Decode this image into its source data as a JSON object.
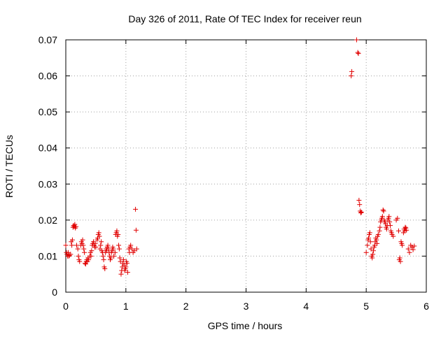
{
  "chart_data": {
    "type": "scatter",
    "title": "Day 326 of 2011, Rate Of TEC Index for receiver reun",
    "xlabel": "GPS time / hours",
    "ylabel": "ROTI / TECUs",
    "xlim": [
      0,
      6
    ],
    "ylim": [
      0,
      0.07
    ],
    "xticks": [
      0,
      1,
      2,
      3,
      4,
      5,
      6
    ],
    "xtick_labels": [
      "0",
      "1",
      "2",
      "3",
      "4",
      "5",
      "6"
    ],
    "yticks": [
      0,
      0.01,
      0.02,
      0.03,
      0.04,
      0.05,
      0.06,
      0.07
    ],
    "ytick_labels": [
      "0",
      "0.01",
      "0.02",
      "0.03",
      "0.04",
      "0.05",
      "0.06",
      "0.07"
    ],
    "grid": true,
    "marker": "+",
    "color": "#e00000",
    "series": [
      {
        "name": "ROTI",
        "points": [
          [
            0.0,
            0.013
          ],
          [
            0.01,
            0.011
          ],
          [
            0.02,
            0.0105
          ],
          [
            0.03,
            0.01
          ],
          [
            0.04,
            0.011
          ],
          [
            0.05,
            0.01
          ],
          [
            0.06,
            0.0102
          ],
          [
            0.08,
            0.0105
          ],
          [
            0.09,
            0.014
          ],
          [
            0.1,
            0.013
          ],
          [
            0.11,
            0.0145
          ],
          [
            0.12,
            0.018
          ],
          [
            0.13,
            0.0185
          ],
          [
            0.14,
            0.0182
          ],
          [
            0.15,
            0.0188
          ],
          [
            0.16,
            0.0178
          ],
          [
            0.17,
            0.0182
          ],
          [
            0.18,
            0.013
          ],
          [
            0.2,
            0.012
          ],
          [
            0.21,
            0.01
          ],
          [
            0.22,
            0.009
          ],
          [
            0.23,
            0.0085
          ],
          [
            0.25,
            0.013
          ],
          [
            0.26,
            0.014
          ],
          [
            0.27,
            0.0135
          ],
          [
            0.28,
            0.0145
          ],
          [
            0.29,
            0.013
          ],
          [
            0.3,
            0.012
          ],
          [
            0.31,
            0.011
          ],
          [
            0.32,
            0.008
          ],
          [
            0.33,
            0.0078
          ],
          [
            0.34,
            0.0085
          ],
          [
            0.35,
            0.009
          ],
          [
            0.36,
            0.0085
          ],
          [
            0.37,
            0.0095
          ],
          [
            0.38,
            0.009
          ],
          [
            0.4,
            0.01
          ],
          [
            0.41,
            0.011
          ],
          [
            0.42,
            0.01
          ],
          [
            0.43,
            0.0115
          ],
          [
            0.44,
            0.013
          ],
          [
            0.45,
            0.0135
          ],
          [
            0.46,
            0.014
          ],
          [
            0.47,
            0.013
          ],
          [
            0.48,
            0.0125
          ],
          [
            0.49,
            0.0135
          ],
          [
            0.5,
            0.0125
          ],
          [
            0.52,
            0.0145
          ],
          [
            0.53,
            0.015
          ],
          [
            0.54,
            0.016
          ],
          [
            0.55,
            0.0165
          ],
          [
            0.56,
            0.0155
          ],
          [
            0.57,
            0.012
          ],
          [
            0.58,
            0.013
          ],
          [
            0.59,
            0.014
          ],
          [
            0.6,
            0.0115
          ],
          [
            0.61,
            0.011
          ],
          [
            0.62,
            0.01
          ],
          [
            0.63,
            0.009
          ],
          [
            0.64,
            0.007
          ],
          [
            0.65,
            0.0065
          ],
          [
            0.66,
            0.011
          ],
          [
            0.67,
            0.012
          ],
          [
            0.68,
            0.0115
          ],
          [
            0.69,
            0.0125
          ],
          [
            0.7,
            0.013
          ],
          [
            0.71,
            0.012
          ],
          [
            0.72,
            0.011
          ],
          [
            0.73,
            0.01
          ],
          [
            0.74,
            0.009
          ],
          [
            0.75,
            0.0095
          ],
          [
            0.76,
            0.011
          ],
          [
            0.77,
            0.0115
          ],
          [
            0.78,
            0.0125
          ],
          [
            0.79,
            0.012
          ],
          [
            0.8,
            0.01
          ],
          [
            0.82,
            0.011
          ],
          [
            0.83,
            0.016
          ],
          [
            0.84,
            0.0165
          ],
          [
            0.85,
            0.017
          ],
          [
            0.86,
            0.0155
          ],
          [
            0.87,
            0.016
          ],
          [
            0.88,
            0.013
          ],
          [
            0.89,
            0.012
          ],
          [
            0.9,
            0.0095
          ],
          [
            0.91,
            0.0085
          ],
          [
            0.92,
            0.005
          ],
          [
            0.93,
            0.006
          ],
          [
            0.94,
            0.007
          ],
          [
            0.95,
            0.008
          ],
          [
            0.96,
            0.009
          ],
          [
            0.97,
            0.0075
          ],
          [
            0.98,
            0.006
          ],
          [
            0.99,
            0.0065
          ],
          [
            1.0,
            0.007
          ],
          [
            1.01,
            0.0085
          ],
          [
            1.02,
            0.008
          ],
          [
            1.03,
            0.0055
          ],
          [
            1.05,
            0.012
          ],
          [
            1.06,
            0.011
          ],
          [
            1.07,
            0.0125
          ],
          [
            1.08,
            0.013
          ],
          [
            1.1,
            0.012
          ],
          [
            1.12,
            0.011
          ],
          [
            1.14,
            0.0115
          ],
          [
            1.16,
            0.023
          ],
          [
            1.17,
            0.0172
          ],
          [
            1.18,
            0.012
          ]
        ]
      },
      {
        "name": "ROTI",
        "points": [
          [
            4.75,
            0.06
          ],
          [
            4.76,
            0.0612
          ],
          [
            4.84,
            0.07
          ],
          [
            4.86,
            0.0665
          ],
          [
            4.87,
            0.0662
          ],
          [
            4.88,
            0.0255
          ],
          [
            4.89,
            0.0243
          ],
          [
            4.9,
            0.0225
          ],
          [
            4.91,
            0.022
          ],
          [
            4.92,
            0.0222
          ],
          [
            5.0,
            0.011
          ],
          [
            5.02,
            0.013
          ],
          [
            5.03,
            0.0145
          ],
          [
            5.04,
            0.015
          ],
          [
            5.05,
            0.016
          ],
          [
            5.06,
            0.0165
          ],
          [
            5.07,
            0.014
          ],
          [
            5.08,
            0.012
          ],
          [
            5.09,
            0.01
          ],
          [
            5.1,
            0.0095
          ],
          [
            5.11,
            0.0105
          ],
          [
            5.12,
            0.0115
          ],
          [
            5.13,
            0.0125
          ],
          [
            5.14,
            0.013
          ],
          [
            5.15,
            0.014
          ],
          [
            5.16,
            0.015
          ],
          [
            5.17,
            0.0145
          ],
          [
            5.18,
            0.0135
          ],
          [
            5.19,
            0.0155
          ],
          [
            5.2,
            0.016
          ],
          [
            5.22,
            0.017
          ],
          [
            5.23,
            0.018
          ],
          [
            5.24,
            0.0195
          ],
          [
            5.25,
            0.02
          ],
          [
            5.26,
            0.0205
          ],
          [
            5.27,
            0.021
          ],
          [
            5.28,
            0.0228
          ],
          [
            5.29,
            0.0225
          ],
          [
            5.3,
            0.02
          ],
          [
            5.31,
            0.0195
          ],
          [
            5.32,
            0.019
          ],
          [
            5.33,
            0.018
          ],
          [
            5.34,
            0.0175
          ],
          [
            5.35,
            0.0185
          ],
          [
            5.36,
            0.02
          ],
          [
            5.37,
            0.0205
          ],
          [
            5.38,
            0.021
          ],
          [
            5.39,
            0.0195
          ],
          [
            5.4,
            0.0185
          ],
          [
            5.41,
            0.017
          ],
          [
            5.42,
            0.0165
          ],
          [
            5.43,
            0.016
          ],
          [
            5.45,
            0.0155
          ],
          [
            5.5,
            0.02
          ],
          [
            5.52,
            0.0205
          ],
          [
            5.54,
            0.017
          ],
          [
            5.55,
            0.009
          ],
          [
            5.56,
            0.0095
          ],
          [
            5.57,
            0.0085
          ],
          [
            5.58,
            0.014
          ],
          [
            5.59,
            0.0135
          ],
          [
            5.6,
            0.013
          ],
          [
            5.62,
            0.0165
          ],
          [
            5.63,
            0.0175
          ],
          [
            5.64,
            0.017
          ],
          [
            5.65,
            0.018
          ],
          [
            5.66,
            0.0178
          ],
          [
            5.67,
            0.0172
          ],
          [
            5.7,
            0.012
          ],
          [
            5.72,
            0.011
          ],
          [
            5.74,
            0.013
          ],
          [
            5.76,
            0.0125
          ],
          [
            5.78,
            0.0118
          ],
          [
            5.8,
            0.0128
          ]
        ]
      }
    ]
  }
}
